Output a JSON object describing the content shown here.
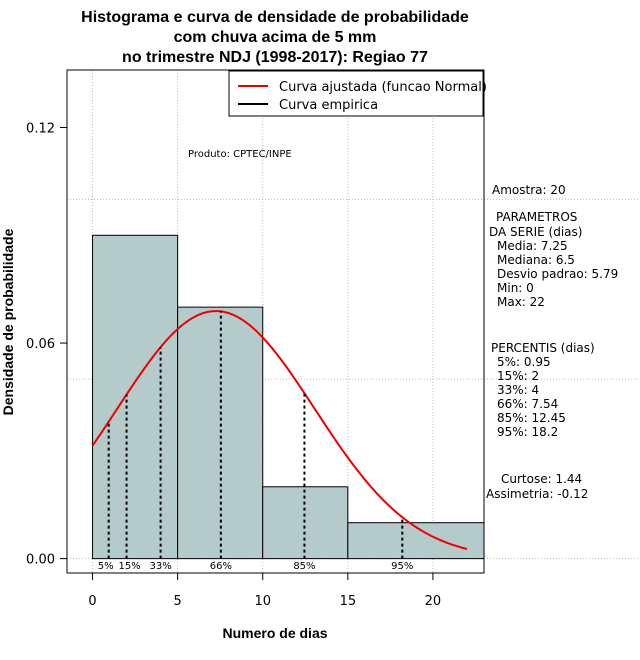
{
  "chart_data": {
    "type": "bar",
    "title_lines": [
      "Histograma e curva de densidade de probabilidade",
      "com chuva acima de 5 mm",
      "no trimestre NDJ (1998-2017): Regiao 77"
    ],
    "xlabel": "Numero de dias",
    "ylabel": "Densidade de probabilidade",
    "xlim": [
      -1.5,
      23
    ],
    "ylim": [
      -0.004,
      0.136
    ],
    "x_ticks": [
      0,
      5,
      10,
      15,
      20
    ],
    "y_ticks": [
      0.0,
      0.06,
      0.12
    ],
    "y_tick_labels": [
      "0.00",
      "0.06",
      "0.12"
    ],
    "grid": true,
    "grid_x": [
      0,
      5,
      10,
      15,
      20
    ],
    "grid_y": [
      0.0,
      0.05,
      0.1
    ],
    "bins": [
      {
        "start": 0,
        "end": 5,
        "density": 0.09
      },
      {
        "start": 5,
        "end": 10,
        "density": 0.07
      },
      {
        "start": 10,
        "end": 15,
        "density": 0.02
      },
      {
        "start": 15,
        "end": 23,
        "density": 0.01
      }
    ],
    "bar_color": "#b5cbcb",
    "normal_curve": {
      "mean": 7.25,
      "sd": 5.79,
      "x_from": 0,
      "x_to": 22,
      "color": "#ee0000"
    },
    "percentile_lines": [
      {
        "label": "5%",
        "x": 0.95
      },
      {
        "label": "15%",
        "x": 2
      },
      {
        "label": "33%",
        "x": 4
      },
      {
        "label": "66%",
        "x": 7.54
      },
      {
        "label": "85%",
        "x": 12.45
      },
      {
        "label": "95%",
        "x": 18.2
      }
    ],
    "legend": {
      "position": "top-right",
      "entries": [
        {
          "label": "Curva ajustada (funcao Normal)",
          "color": "#ee0000"
        },
        {
          "label": "Curva empirica",
          "color": "#000000"
        }
      ]
    },
    "annotation": "Produto: CPTEC/INPE",
    "side_panel": {
      "sample": "Amostra: 20",
      "params_title": [
        "PARAMETROS",
        "DA SERIE (dias)"
      ],
      "params": [
        "Media: 7.25",
        "Mediana: 6.5",
        "Desvio padrao: 5.79",
        "Min: 0",
        "Max: 22"
      ],
      "percentis_title": "PERCENTIS (dias)",
      "percentis": [
        "5%: 0.95",
        "15%: 2",
        "33%: 4",
        "66%: 7.54",
        "85%: 12.45",
        "95%: 18.2"
      ],
      "kurtosis": "Curtose: 1.44",
      "skewness": "Assimetria: -0.12"
    }
  }
}
